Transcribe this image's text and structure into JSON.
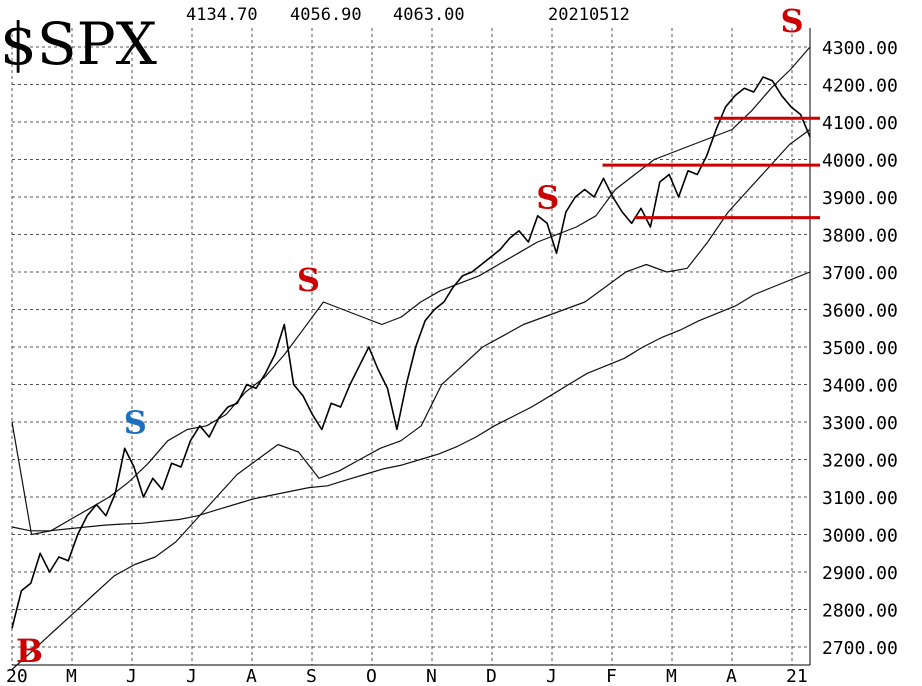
{
  "chart_data": {
    "type": "line",
    "symbol": "$SPX",
    "header_values": [
      "4134.70",
      "4056.90",
      "4063.00",
      "20210512"
    ],
    "ylim": [
      2640,
      4340
    ],
    "y_ticks": [
      {
        "value": 4300,
        "label": "4300.00"
      },
      {
        "value": 4200,
        "label": "4200.00"
      },
      {
        "value": 4100,
        "label": "4100.00"
      },
      {
        "value": 4000,
        "label": "4000.00"
      },
      {
        "value": 3900,
        "label": "3900.00"
      },
      {
        "value": 3800,
        "label": "3800.00"
      },
      {
        "value": 3700,
        "label": "3700.00"
      },
      {
        "value": 3600,
        "label": "3600.00"
      },
      {
        "value": 3500,
        "label": "3500.00"
      },
      {
        "value": 3400,
        "label": "3400.00"
      },
      {
        "value": 3300,
        "label": "3300.00"
      },
      {
        "value": 3200,
        "label": "3200.00"
      },
      {
        "value": 3100,
        "label": "3100.00"
      },
      {
        "value": 3000,
        "label": "3000.00"
      },
      {
        "value": 2900,
        "label": "2900.00"
      },
      {
        "value": 2800,
        "label": "2800.00"
      },
      {
        "value": 2700,
        "label": "2700.00"
      }
    ],
    "x_ticks": [
      "20",
      "M",
      "J",
      "J",
      "A",
      "S",
      "O",
      "N",
      "D",
      "J",
      "F",
      "M",
      "A",
      "21"
    ],
    "grid": true,
    "price": [
      2750,
      2850,
      2870,
      2950,
      2900,
      2940,
      2930,
      3000,
      3050,
      3080,
      3050,
      3110,
      3230,
      3180,
      3100,
      3150,
      3120,
      3190,
      3180,
      3250,
      3290,
      3260,
      3310,
      3340,
      3350,
      3400,
      3390,
      3430,
      3480,
      3560,
      3400,
      3370,
      3320,
      3280,
      3350,
      3340,
      3400,
      3450,
      3500,
      3440,
      3390,
      3280,
      3400,
      3500,
      3570,
      3600,
      3620,
      3660,
      3690,
      3700,
      3720,
      3740,
      3760,
      3790,
      3810,
      3780,
      3850,
      3830,
      3750,
      3860,
      3900,
      3920,
      3900,
      3950,
      3900,
      3860,
      3830,
      3870,
      3820,
      3940,
      3960,
      3900,
      3970,
      3960,
      4010,
      4080,
      4140,
      4170,
      4190,
      4180,
      4220,
      4210,
      4170,
      4140,
      4120,
      4060
    ],
    "ma200": [
      3020,
      3010,
      3010,
      3015,
      3020,
      3025,
      3028,
      3030,
      3035,
      3040,
      3050,
      3065,
      3080,
      3095,
      3105,
      3115,
      3125,
      3130,
      3145,
      3160,
      3175,
      3185,
      3200,
      3215,
      3235,
      3260,
      3290,
      3315,
      3340,
      3370,
      3400,
      3430,
      3450,
      3470,
      3500,
      3525,
      3545,
      3570,
      3590,
      3610,
      3640,
      3660,
      3680,
      3700
    ],
    "envelope_upper": [
      3300,
      3000,
      3010,
      3040,
      3070,
      3100,
      3140,
      3190,
      3250,
      3280,
      3290,
      3320,
      3380,
      3420,
      3480,
      3550,
      3620,
      3600,
      3580,
      3560,
      3580,
      3620,
      3650,
      3670,
      3690,
      3720,
      3750,
      3780,
      3800,
      3820,
      3850,
      3920,
      3960,
      4000,
      4020,
      4040,
      4060,
      4080,
      4130,
      4190,
      4240,
      4300
    ],
    "envelope_lower": [
      2640,
      2690,
      2740,
      2790,
      2840,
      2890,
      2920,
      2940,
      2980,
      3040,
      3100,
      3160,
      3200,
      3240,
      3220,
      3150,
      3170,
      3200,
      3230,
      3250,
      3290,
      3400,
      3450,
      3500,
      3530,
      3560,
      3580,
      3600,
      3620,
      3660,
      3700,
      3720,
      3700,
      3710,
      3780,
      3860,
      3920,
      3980,
      4040,
      4080
    ],
    "horizontal_levels": [
      {
        "value": 4110,
        "from_frac": 0.88,
        "color": "#cc0000"
      },
      {
        "value": 3985,
        "from_frac": 0.74,
        "color": "#cc0000"
      },
      {
        "value": 3845,
        "from_frac": 0.78,
        "color": "#cc0000"
      }
    ],
    "signals": [
      {
        "label": "B",
        "date_frac": 0.02,
        "value": 2660,
        "color": "#cc0000"
      },
      {
        "label": "S",
        "date_frac": 0.155,
        "value": 3270,
        "color": "#1f6fbf"
      },
      {
        "label": "S",
        "date_frac": 0.372,
        "value": 3650,
        "color": "#cc0000"
      },
      {
        "label": "S",
        "date_frac": 0.672,
        "value": 3870,
        "color": "#cc0000"
      },
      {
        "label": "S",
        "date_frac": 0.978,
        "value": 4340,
        "color": "#cc0000"
      }
    ]
  }
}
